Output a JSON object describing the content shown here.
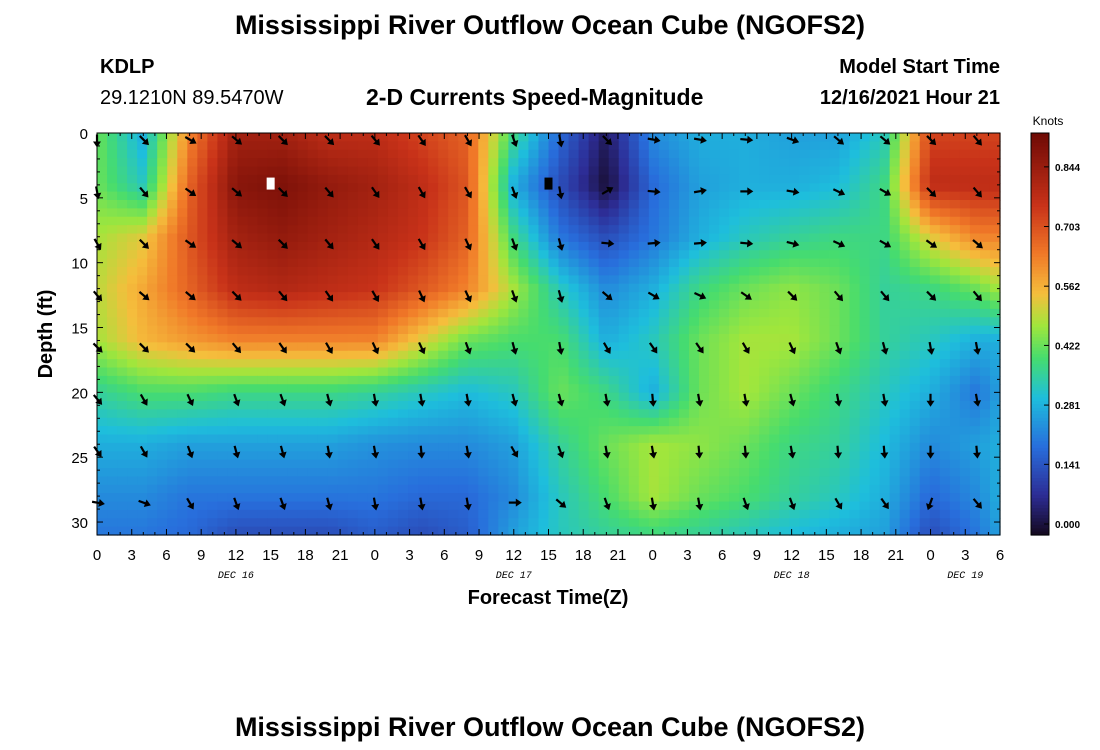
{
  "chart_data": {
    "type": "heatmap",
    "title": "Mississippi River Outflow Ocean Cube (NGOFS2)",
    "station": "KDLP",
    "coordinates": "29.1210N  89.5470W",
    "subtitle": "2-D Currents Speed-Magnitude",
    "model_start_label": "Model Start Time",
    "model_start_value": "12/16/2021 Hour 21",
    "xlabel": "Forecast Time(Z)",
    "ylabel": "Depth (ft)",
    "x_hours_range": [
      0,
      78
    ],
    "y_depth_range": [
      0,
      31
    ],
    "x_tick_labels": [
      "0",
      "3",
      "6",
      "9",
      "12",
      "15",
      "18",
      "21",
      "0",
      "3",
      "6",
      "9",
      "12",
      "15",
      "18",
      "21",
      "0",
      "3",
      "6",
      "9",
      "12",
      "15",
      "18",
      "21",
      "0",
      "3",
      "6"
    ],
    "y_tick_values": [
      0,
      5,
      10,
      15,
      20,
      25,
      30
    ],
    "y_tick_labels": [
      "0",
      "5",
      "10",
      "15",
      "20",
      "25",
      "30"
    ],
    "date_labels": [
      {
        "text": "DEC 16",
        "hour": 12
      },
      {
        "text": "DEC 17",
        "hour": 36
      },
      {
        "text": "DEC 18",
        "hour": 60
      },
      {
        "text": "DEC 19",
        "hour": 75
      }
    ],
    "colorbar": {
      "unit": "Knots",
      "ticks": [
        "0.844",
        "0.703",
        "0.562",
        "0.422",
        "0.281",
        "0.141",
        "0.000"
      ],
      "range": [
        0.0,
        0.95
      ]
    },
    "speed_grid": {
      "x_hours": [
        0,
        4,
        8,
        12,
        16,
        20,
        24,
        28,
        32,
        36,
        40,
        44,
        48,
        52,
        56,
        60,
        64,
        68,
        72,
        76,
        78
      ],
      "depths_ft": [
        0,
        4,
        8,
        12,
        16,
        20,
        24,
        28,
        31
      ],
      "values": [
        [
          0.45,
          0.3,
          0.65,
          0.85,
          0.85,
          0.8,
          0.8,
          0.75,
          0.7,
          0.4,
          0.2,
          0.05,
          0.25,
          0.3,
          0.3,
          0.28,
          0.28,
          0.35,
          0.75,
          0.75,
          0.75
        ],
        [
          0.45,
          0.35,
          0.7,
          0.9,
          0.92,
          0.88,
          0.85,
          0.8,
          0.72,
          0.3,
          0.15,
          0.02,
          0.2,
          0.28,
          0.3,
          0.3,
          0.32,
          0.4,
          0.8,
          0.8,
          0.8
        ],
        [
          0.5,
          0.55,
          0.72,
          0.85,
          0.88,
          0.85,
          0.82,
          0.78,
          0.7,
          0.4,
          0.22,
          0.15,
          0.22,
          0.3,
          0.35,
          0.38,
          0.4,
          0.4,
          0.55,
          0.65,
          0.65
        ],
        [
          0.52,
          0.6,
          0.7,
          0.8,
          0.82,
          0.8,
          0.78,
          0.72,
          0.65,
          0.5,
          0.35,
          0.25,
          0.3,
          0.4,
          0.45,
          0.48,
          0.45,
          0.38,
          0.4,
          0.45,
          0.5
        ],
        [
          0.5,
          0.58,
          0.62,
          0.65,
          0.65,
          0.65,
          0.65,
          0.55,
          0.45,
          0.42,
          0.42,
          0.3,
          0.35,
          0.45,
          0.5,
          0.5,
          0.45,
          0.38,
          0.35,
          0.3,
          0.3
        ],
        [
          0.38,
          0.42,
          0.42,
          0.4,
          0.4,
          0.4,
          0.38,
          0.35,
          0.32,
          0.35,
          0.45,
          0.4,
          0.3,
          0.45,
          0.5,
          0.45,
          0.4,
          0.35,
          0.3,
          0.22,
          0.28
        ],
        [
          0.3,
          0.3,
          0.28,
          0.28,
          0.28,
          0.28,
          0.26,
          0.25,
          0.25,
          0.28,
          0.38,
          0.45,
          0.5,
          0.48,
          0.45,
          0.4,
          0.38,
          0.32,
          0.25,
          0.28,
          0.3
        ],
        [
          0.25,
          0.25,
          0.22,
          0.22,
          0.22,
          0.22,
          0.22,
          0.2,
          0.2,
          0.25,
          0.35,
          0.42,
          0.5,
          0.45,
          0.42,
          0.38,
          0.35,
          0.3,
          0.2,
          0.25,
          0.3
        ],
        [
          0.22,
          0.22,
          0.2,
          0.15,
          0.15,
          0.15,
          0.18,
          0.15,
          0.18,
          0.28,
          0.35,
          0.38,
          0.4,
          0.38,
          0.35,
          0.32,
          0.3,
          0.28,
          0.15,
          0.22,
          0.28
        ]
      ]
    },
    "vector_grid": {
      "x_hours": [
        0,
        4,
        8,
        12,
        16,
        20,
        24,
        28,
        32,
        36,
        40,
        44,
        48,
        52,
        56,
        60,
        64,
        68,
        72,
        76
      ],
      "depths_ft": [
        0.5,
        4.5,
        8.5,
        12.5,
        16.5,
        20.5,
        24.5,
        28.5
      ],
      "direction_deg": [
        [
          180,
          135,
          120,
          130,
          135,
          135,
          140,
          145,
          150,
          160,
          170,
          135,
          100,
          100,
          95,
          110,
          130,
          130,
          135,
          140
        ],
        [
          170,
          140,
          125,
          130,
          135,
          140,
          145,
          150,
          150,
          160,
          170,
          60,
          95,
          80,
          90,
          100,
          115,
          120,
          135,
          140
        ],
        [
          150,
          135,
          125,
          130,
          135,
          140,
          145,
          150,
          155,
          160,
          165,
          95,
          85,
          85,
          95,
          105,
          115,
          120,
          125,
          130
        ],
        [
          140,
          130,
          130,
          135,
          140,
          145,
          150,
          155,
          155,
          160,
          165,
          130,
          120,
          115,
          125,
          135,
          140,
          140,
          135,
          140
        ],
        [
          135,
          135,
          135,
          140,
          145,
          150,
          155,
          155,
          160,
          165,
          170,
          150,
          145,
          145,
          150,
          155,
          160,
          165,
          170,
          170
        ],
        [
          140,
          150,
          155,
          160,
          160,
          165,
          170,
          170,
          170,
          165,
          165,
          170,
          175,
          170,
          170,
          165,
          170,
          170,
          180,
          170
        ],
        [
          145,
          150,
          160,
          165,
          165,
          170,
          170,
          175,
          170,
          150,
          160,
          170,
          170,
          175,
          175,
          170,
          175,
          175,
          180,
          175
        ],
        [
          100,
          110,
          150,
          160,
          160,
          165,
          170,
          170,
          170,
          90,
          130,
          160,
          170,
          170,
          160,
          160,
          150,
          145,
          200,
          140
        ]
      ]
    },
    "markers": [
      {
        "hour": 15,
        "depth": 3.9,
        "color": "#ffffff"
      },
      {
        "hour": 39,
        "depth": 3.9,
        "color": "#000000"
      }
    ]
  }
}
